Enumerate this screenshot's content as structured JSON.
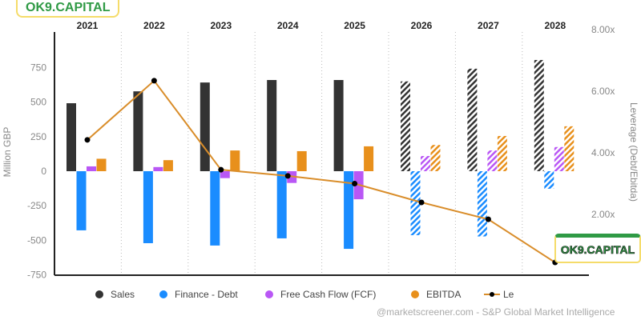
{
  "chart_data": {
    "type": "bar",
    "categories": [
      "2021",
      "2022",
      "2023",
      "2024",
      "2025",
      "2026",
      "2027",
      "2028"
    ],
    "estimate_from": "2026",
    "series": [
      {
        "name": "Sales",
        "color": "#333333",
        "values": [
          492,
          578,
          642,
          660,
          660,
          650,
          742,
          805
        ]
      },
      {
        "name": "Finance - Debt",
        "color": "#1a8cff",
        "values": [
          -428,
          -521,
          -538,
          -486,
          -562,
          -463,
          -472,
          -127
        ]
      },
      {
        "name": "Free Cash Flow (FCF)",
        "color": "#b957f5",
        "values": [
          35,
          30,
          -50,
          -85,
          -203,
          110,
          150,
          175
        ]
      },
      {
        "name": "EBITDA",
        "color": "#e8901c",
        "values": [
          90,
          80,
          150,
          145,
          180,
          190,
          255,
          325
        ]
      }
    ],
    "line": {
      "name": "Leverage (Debt/Ebitda)",
      "color": "#d98d2a",
      "values": [
        4.42,
        6.34,
        3.45,
        3.25,
        3.0,
        2.39,
        1.84,
        0.44
      ]
    },
    "ylabel": "Million GBP",
    "ylim": [
      -750,
      850
    ],
    "yticks": [
      -750,
      -500,
      -250,
      0,
      250,
      500,
      750
    ],
    "y2label": "Leverage (Debt/Ebitda)",
    "y2lim": [
      0,
      8
    ],
    "y2ticks": [
      "2.00x",
      "4.00x",
      "6.00x",
      "8.00x"
    ],
    "legend_position": "bottom"
  },
  "legend": {
    "sales": "Sales",
    "debt": "Finance - Debt",
    "fcf": "Free Cash Flow (FCF)",
    "ebitda": "EBITDA",
    "lev": "Le"
  },
  "footer": "@marketscreener.com - S&P Global Market Intelligence",
  "logo_top": "OK9.CAPITAL",
  "logo_bottom": "OK9.CAPITAL"
}
